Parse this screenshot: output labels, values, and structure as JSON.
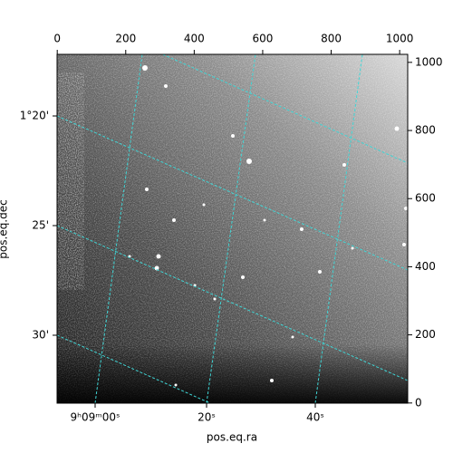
{
  "chart_data": {
    "type": "image",
    "xlabel": "pos.eq.ra",
    "ylabel": "pos.eq.dec",
    "xlim": [
      -0.5,
      1023.5
    ],
    "ylim": [
      -0.5,
      1023.5
    ],
    "xticks": [
      0,
      200,
      400,
      600,
      800,
      1000
    ],
    "yticks": [
      0,
      200,
      400,
      600,
      800,
      1000
    ],
    "ra_ticks": [
      "9ʰ09ᵐ00ˢ",
      "20ˢ",
      "40ˢ"
    ],
    "dec_ticks": [
      "1°20'",
      "25'",
      "30'"
    ],
    "grid_color": "#3fd6d6"
  }
}
